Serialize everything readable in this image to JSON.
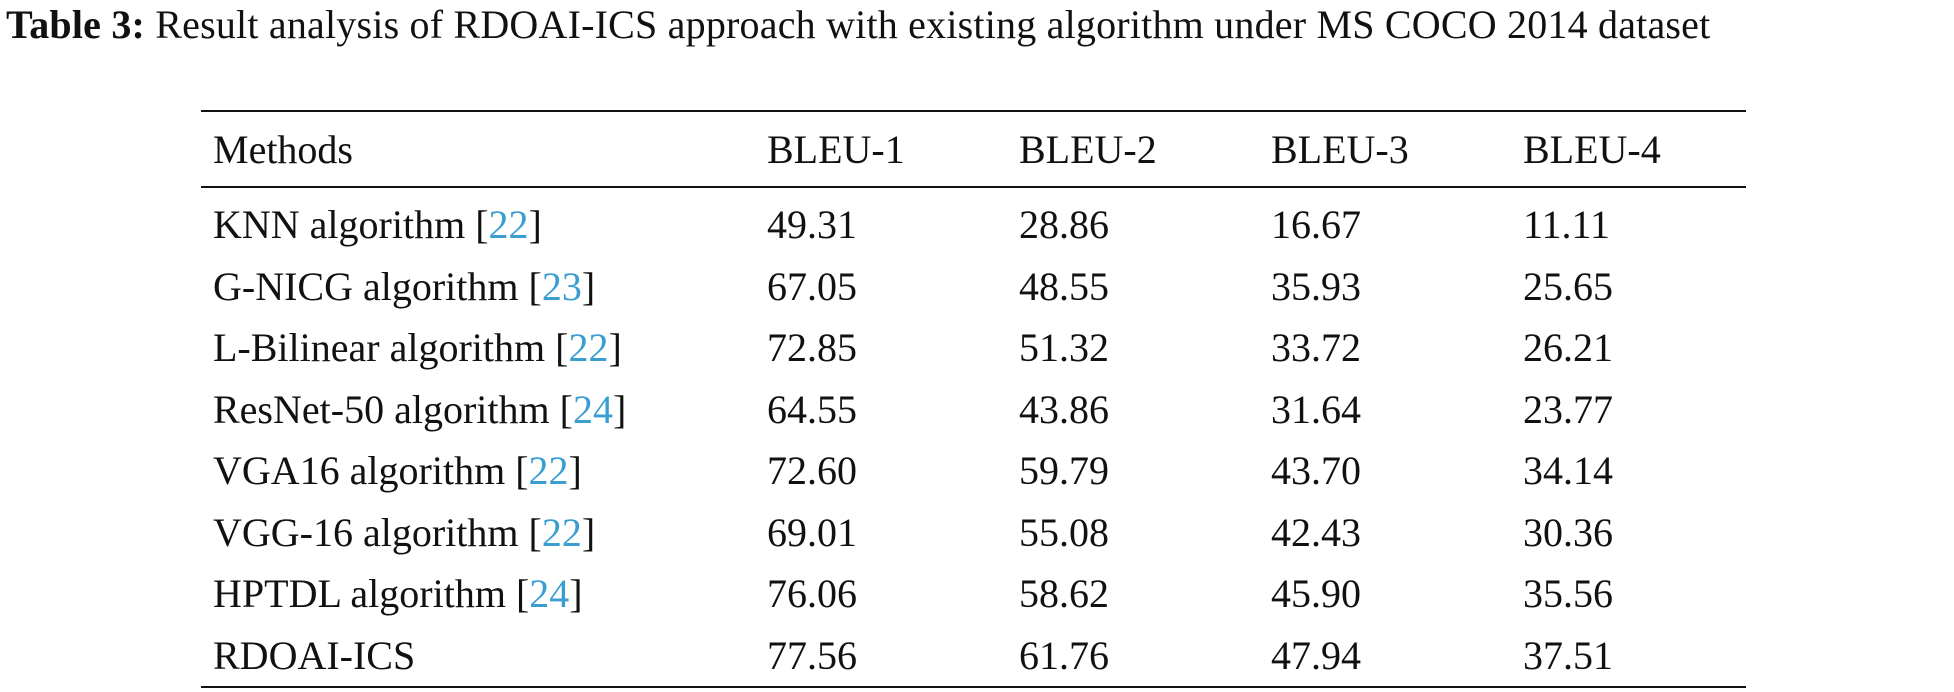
{
  "caption": {
    "label": "Table 3:",
    "text": " Result analysis of RDOAI-ICS approach with existing algorithm under MS COCO 2014 dataset"
  },
  "table": {
    "headers": [
      "Methods",
      "BLEU-1",
      "BLEU-2",
      "BLEU-3",
      "BLEU-4"
    ],
    "rows": [
      {
        "method": "KNN algorithm ",
        "ref": "22",
        "values": [
          "49.31",
          "28.86",
          "16.67",
          "11.11"
        ]
      },
      {
        "method": "G-NICG algorithm ",
        "ref": "23",
        "values": [
          "67.05",
          "48.55",
          "35.93",
          "25.65"
        ]
      },
      {
        "method": "L-Bilinear algorithm ",
        "ref": "22",
        "values": [
          "72.85",
          "51.32",
          "33.72",
          "26.21"
        ]
      },
      {
        "method": "ResNet-50 algorithm ",
        "ref": "24",
        "values": [
          "64.55",
          "43.86",
          "31.64",
          "23.77"
        ]
      },
      {
        "method": "VGA16 algorithm ",
        "ref": "22",
        "values": [
          "72.60",
          "59.79",
          "43.70",
          "34.14"
        ]
      },
      {
        "method": "VGG-16 algorithm ",
        "ref": "22",
        "values": [
          "69.01",
          "55.08",
          "42.43",
          "30.36"
        ]
      },
      {
        "method": "HPTDL algorithm ",
        "ref": "24",
        "values": [
          "76.06",
          "58.62",
          "45.90",
          "35.56"
        ]
      },
      {
        "method": "RDOAI-ICS",
        "ref": "",
        "values": [
          "77.56",
          "61.76",
          "47.94",
          "37.51"
        ]
      }
    ]
  },
  "colors": {
    "text": "#111111",
    "reference_link": "#3a9fd0"
  }
}
